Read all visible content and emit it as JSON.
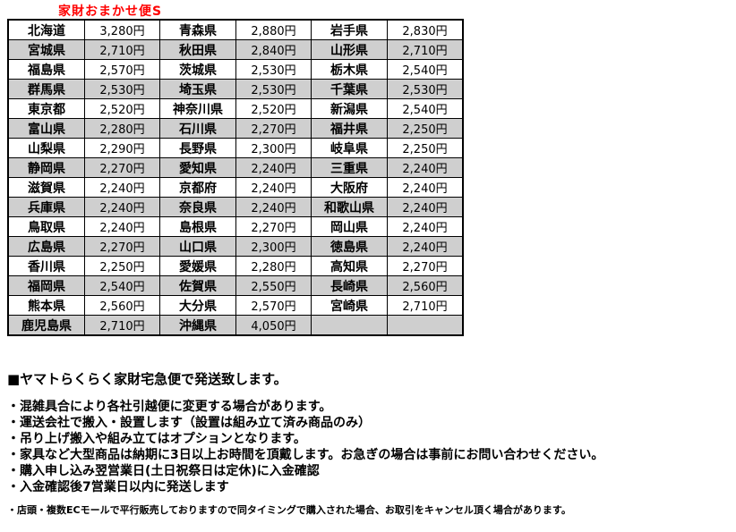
{
  "title": "家財おまかせ便S",
  "colors": {
    "title_red": "#ff0000",
    "row_alt_gray": "#cfcfcf",
    "border": "#000000"
  },
  "table": {
    "rows": [
      [
        {
          "name": "北海道",
          "price": "3,280円"
        },
        {
          "name": "青森県",
          "price": "2,880円"
        },
        {
          "name": "岩手県",
          "price": "2,830円"
        }
      ],
      [
        {
          "name": "宮城県",
          "price": "2,710円"
        },
        {
          "name": "秋田県",
          "price": "2,840円"
        },
        {
          "name": "山形県",
          "price": "2,710円"
        }
      ],
      [
        {
          "name": "福島県",
          "price": "2,570円"
        },
        {
          "name": "茨城県",
          "price": "2,530円"
        },
        {
          "name": "栃木県",
          "price": "2,540円"
        }
      ],
      [
        {
          "name": "群馬県",
          "price": "2,530円"
        },
        {
          "name": "埼玉県",
          "price": "2,530円"
        },
        {
          "name": "千葉県",
          "price": "2,530円"
        }
      ],
      [
        {
          "name": "東京都",
          "price": "2,520円"
        },
        {
          "name": "神奈川県",
          "price": "2,520円"
        },
        {
          "name": "新潟県",
          "price": "2,540円"
        }
      ],
      [
        {
          "name": "富山県",
          "price": "2,280円"
        },
        {
          "name": "石川県",
          "price": "2,270円"
        },
        {
          "name": "福井県",
          "price": "2,250円"
        }
      ],
      [
        {
          "name": "山梨県",
          "price": "2,290円"
        },
        {
          "name": "長野県",
          "price": "2,300円"
        },
        {
          "name": "岐阜県",
          "price": "2,250円"
        }
      ],
      [
        {
          "name": "静岡県",
          "price": "2,270円"
        },
        {
          "name": "愛知県",
          "price": "2,240円"
        },
        {
          "name": "三重県",
          "price": "2,240円"
        }
      ],
      [
        {
          "name": "滋賀県",
          "price": "2,240円"
        },
        {
          "name": "京都府",
          "price": "2,240円"
        },
        {
          "name": "大阪府",
          "price": "2,240円"
        }
      ],
      [
        {
          "name": "兵庫県",
          "price": "2,240円"
        },
        {
          "name": "奈良県",
          "price": "2,240円"
        },
        {
          "name": "和歌山県",
          "price": "2,240円"
        }
      ],
      [
        {
          "name": "鳥取県",
          "price": "2,240円"
        },
        {
          "name": "島根県",
          "price": "2,270円"
        },
        {
          "name": "岡山県",
          "price": "2,240円"
        }
      ],
      [
        {
          "name": "広島県",
          "price": "2,270円"
        },
        {
          "name": "山口県",
          "price": "2,300円"
        },
        {
          "name": "徳島県",
          "price": "2,240円"
        }
      ],
      [
        {
          "name": "香川県",
          "price": "2,250円"
        },
        {
          "name": "愛媛県",
          "price": "2,280円"
        },
        {
          "name": "高知県",
          "price": "2,270円"
        }
      ],
      [
        {
          "name": "福岡県",
          "price": "2,540円"
        },
        {
          "name": "佐賀県",
          "price": "2,550円"
        },
        {
          "name": "長崎県",
          "price": "2,560円"
        }
      ],
      [
        {
          "name": "熊本県",
          "price": "2,560円"
        },
        {
          "name": "大分県",
          "price": "2,570円"
        },
        {
          "name": "宮崎県",
          "price": "2,710円"
        }
      ],
      [
        {
          "name": "鹿児島県",
          "price": "2,710円"
        },
        {
          "name": "沖縄県",
          "price": "4,050円"
        },
        {
          "name": "",
          "price": ""
        }
      ]
    ]
  },
  "notes": {
    "heading": "■ヤマトらくらく家財宅急便で発送致します。",
    "bullets": [
      "・混雑具合により各社引越便に変更する場合があります。",
      "・運送会社で搬入・設置します（設置は組み立て済み商品のみ）",
      "・吊り上げ搬入や組み立てはオプションとなります。",
      "・家具など大型商品は納期に3日以上お時間を頂戴します。お急ぎの場合は事前にお問い合わせください。",
      "・購入申し込み翌営業日(土日祝祭日は定休)に入金確認",
      "・入金確認後7営業日以内に発送します"
    ],
    "footnote": "・店頭・複数ECモールで平行販売しておりますので同タイミングで購入された場合、お取引をキャンセル頂く場合があります。"
  }
}
